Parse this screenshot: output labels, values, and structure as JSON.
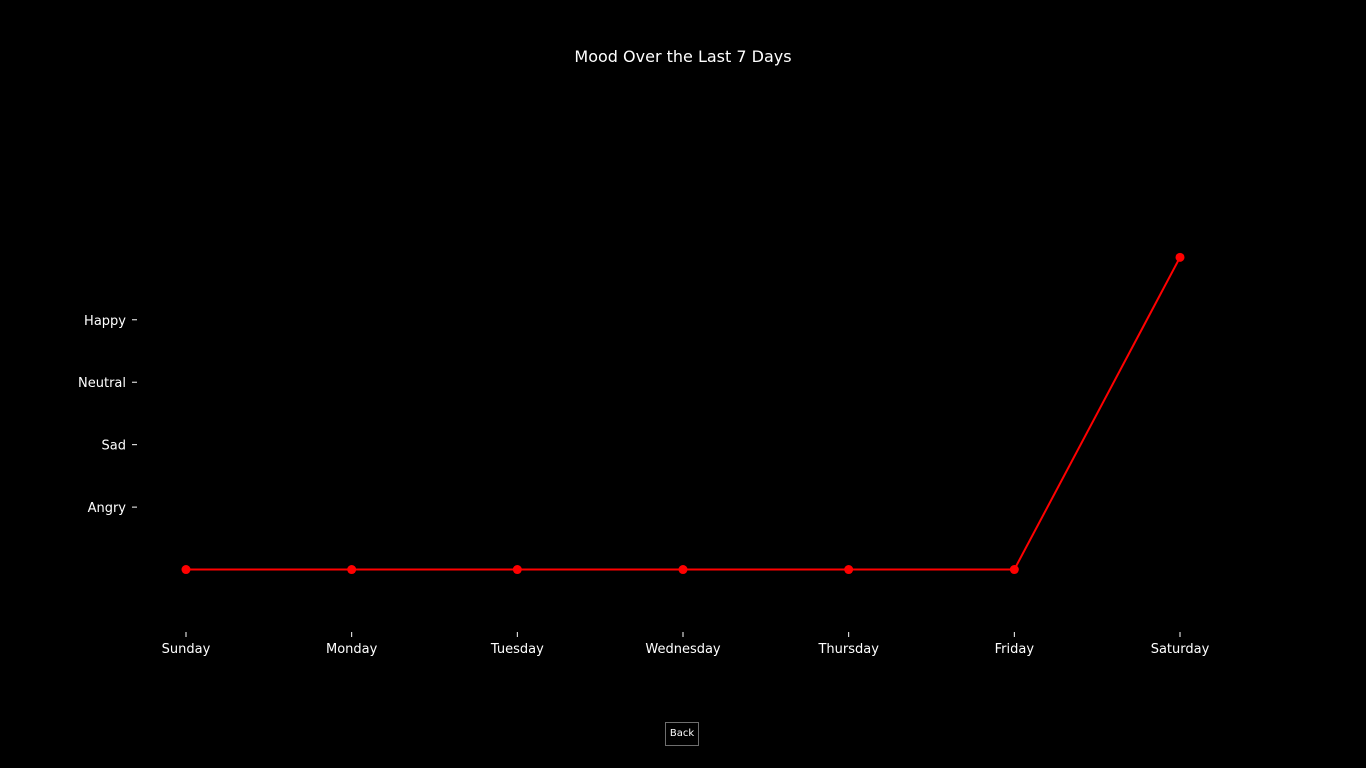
{
  "chart_data": {
    "type": "line",
    "title": "Mood Over the Last 7 Days",
    "xlabel": "",
    "ylabel": "",
    "categories": [
      "Sunday",
      "Monday",
      "Tuesday",
      "Wednesday",
      "Thursday",
      "Friday",
      "Saturday"
    ],
    "y_ticks": [
      {
        "label": "Angry",
        "value": 1
      },
      {
        "label": "Sad",
        "value": 2
      },
      {
        "label": "Neutral",
        "value": 3
      },
      {
        "label": "Happy",
        "value": 4
      }
    ],
    "values": [
      0,
      0,
      0,
      0,
      0,
      0,
      5
    ],
    "ylim": [
      -1,
      8
    ],
    "grid": false,
    "legend": "none",
    "line_color": "#ff0000",
    "marker_color": "#ff0000",
    "background_color": "#000000",
    "text_color": "#ffffff"
  },
  "controls": {
    "back_label": "Back"
  }
}
